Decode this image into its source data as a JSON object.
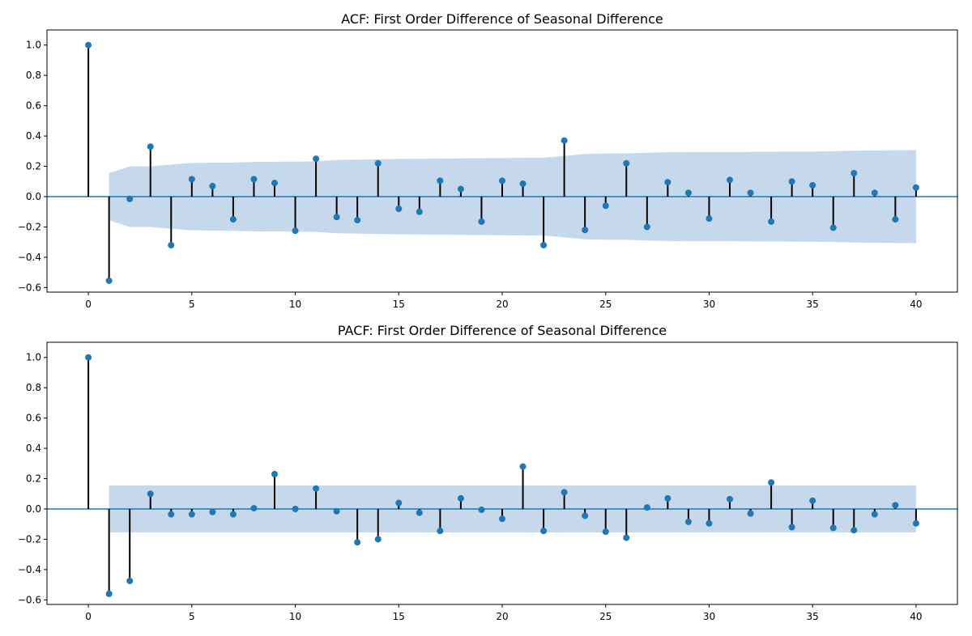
{
  "chart_data": [
    {
      "type": "stem",
      "title": "ACF: First Order Difference of Seasonal Difference",
      "xlim": [
        -2,
        42
      ],
      "ylim": [
        -0.63,
        1.1
      ],
      "xticks": [
        0,
        5,
        10,
        15,
        20,
        25,
        30,
        35,
        40
      ],
      "yticks": [
        -0.6,
        -0.4,
        -0.2,
        0.0,
        0.2,
        0.4,
        0.6,
        0.8,
        1.0
      ],
      "ytick_labels": [
        "−0.6",
        "−0.4",
        "−0.2",
        "0.0",
        "0.2",
        "0.4",
        "0.6",
        "0.8",
        "1.0"
      ],
      "lags": [
        0,
        1,
        2,
        3,
        4,
        5,
        6,
        7,
        8,
        9,
        10,
        11,
        12,
        13,
        14,
        15,
        16,
        17,
        18,
        19,
        20,
        21,
        22,
        23,
        24,
        25,
        26,
        27,
        28,
        29,
        30,
        31,
        32,
        33,
        34,
        35,
        36,
        37,
        38,
        39,
        40
      ],
      "values": [
        1.0,
        -0.555,
        -0.015,
        0.33,
        -0.32,
        0.115,
        0.07,
        -0.15,
        0.115,
        0.09,
        -0.225,
        0.25,
        -0.135,
        -0.155,
        0.22,
        -0.08,
        -0.1,
        0.105,
        0.05,
        -0.165,
        0.105,
        0.085,
        -0.32,
        0.37,
        -0.22,
        -0.06,
        0.22,
        -0.2,
        0.095,
        0.025,
        -0.145,
        0.11,
        0.025,
        -0.165,
        0.1,
        0.075,
        -0.205,
        0.155,
        0.025,
        -0.15,
        0.06
      ],
      "confint_upper": [
        0,
        0.155,
        0.2,
        0.2,
        0.212,
        0.222,
        0.224,
        0.225,
        0.229,
        0.23,
        0.231,
        0.233,
        0.242,
        0.244,
        0.246,
        0.249,
        0.25,
        0.251,
        0.252,
        0.253,
        0.255,
        0.256,
        0.257,
        0.268,
        0.282,
        0.284,
        0.285,
        0.29,
        0.293,
        0.294,
        0.294,
        0.294,
        0.295,
        0.296,
        0.297,
        0.298,
        0.299,
        0.303,
        0.305,
        0.306,
        0.307
      ],
      "colors": {
        "marker": "#1f77b4",
        "band": "#c6d9ec",
        "stem": "#000000",
        "zero_line": "#1f77b4"
      }
    },
    {
      "type": "stem",
      "title": "PACF: First Order Difference of Seasonal Difference",
      "xlim": [
        -2,
        42
      ],
      "ylim": [
        -0.63,
        1.1
      ],
      "xticks": [
        0,
        5,
        10,
        15,
        20,
        25,
        30,
        35,
        40
      ],
      "yticks": [
        -0.6,
        -0.4,
        -0.2,
        0.0,
        0.2,
        0.4,
        0.6,
        0.8,
        1.0
      ],
      "ytick_labels": [
        "−0.6",
        "−0.4",
        "−0.2",
        "0.0",
        "0.2",
        "0.4",
        "0.6",
        "0.8",
        "1.0"
      ],
      "lags": [
        0,
        1,
        2,
        3,
        4,
        5,
        6,
        7,
        8,
        9,
        10,
        11,
        12,
        13,
        14,
        15,
        16,
        17,
        18,
        19,
        20,
        21,
        22,
        23,
        24,
        25,
        26,
        27,
        28,
        29,
        30,
        31,
        32,
        33,
        34,
        35,
        36,
        37,
        38,
        39,
        40
      ],
      "values": [
        1.0,
        -0.56,
        -0.475,
        0.1,
        -0.035,
        -0.035,
        -0.02,
        -0.035,
        0.005,
        0.23,
        0.0,
        0.135,
        -0.015,
        -0.22,
        -0.2,
        0.04,
        -0.025,
        -0.145,
        0.07,
        -0.005,
        -0.065,
        0.28,
        -0.145,
        0.11,
        -0.045,
        -0.15,
        -0.19,
        0.01,
        0.07,
        -0.085,
        -0.095,
        0.065,
        -0.03,
        0.175,
        -0.12,
        0.055,
        -0.125,
        -0.14,
        -0.035,
        0.025,
        -0.095
      ],
      "confint_upper": [
        0,
        0.155,
        0.155,
        0.155,
        0.155,
        0.155,
        0.155,
        0.155,
        0.155,
        0.155,
        0.155,
        0.155,
        0.155,
        0.155,
        0.155,
        0.155,
        0.155,
        0.155,
        0.155,
        0.155,
        0.155,
        0.155,
        0.155,
        0.155,
        0.155,
        0.155,
        0.155,
        0.155,
        0.155,
        0.155,
        0.155,
        0.155,
        0.155,
        0.155,
        0.155,
        0.155,
        0.155,
        0.155,
        0.155,
        0.155,
        0.155
      ],
      "colors": {
        "marker": "#1f77b4",
        "band": "#c6d9ec",
        "stem": "#000000",
        "zero_line": "#1f77b4"
      }
    }
  ]
}
